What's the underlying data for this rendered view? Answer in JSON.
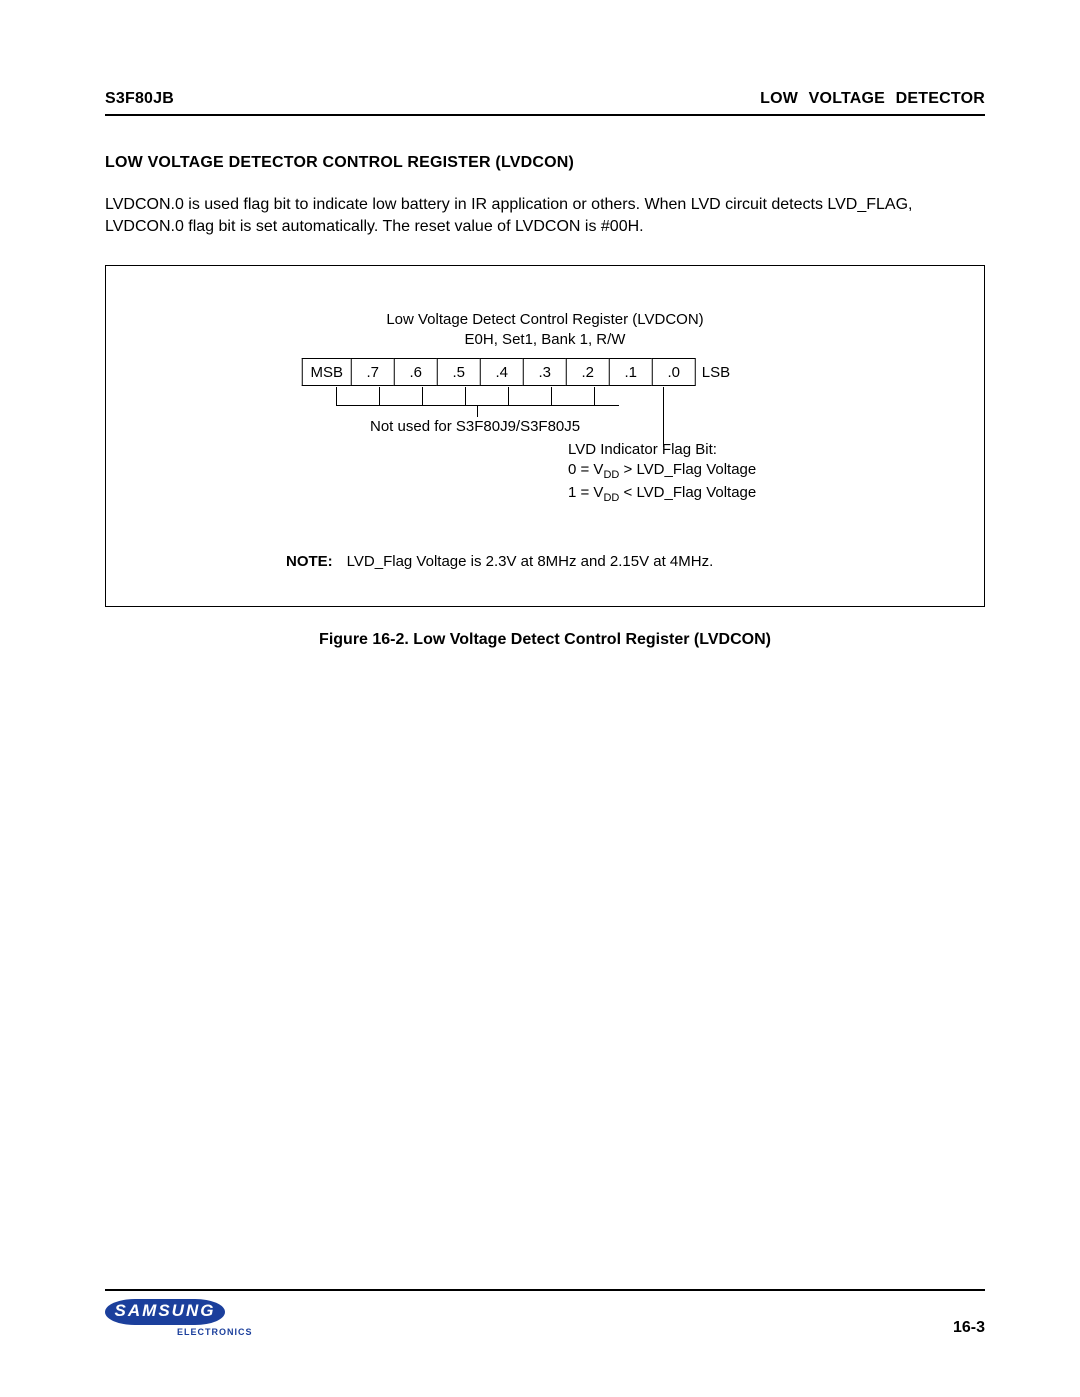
{
  "header": {
    "left": "S3F80JB",
    "right": "LOW   VOLTAGE DETECTOR"
  },
  "section_title": "LOW VOLTAGE DETECTOR CONTROL REGISTER (LVDCON)",
  "body_text": "LVDCON.0 is used flag bit to indicate low battery in IR application or others. When LVD circuit detects LVD_FLAG, LVDCON.0 flag bit is set automatically. The reset value of LVDCON is #00H.",
  "figure": {
    "title_line1": "Low Voltage Detect Control Register (LVDCON)",
    "title_line2": "E0H, Set1, Bank 1, R/W",
    "msb": "MSB",
    "lsb": "LSB",
    "bits": [
      ".7",
      ".6",
      ".5",
      ".4",
      ".3",
      ".2",
      ".1",
      ".0"
    ],
    "not_used": "Not used for S3F80J9/S3F80J5",
    "flag_title": "LVD Indicator Flag Bit:",
    "flag_0_prefix": "0 = V",
    "flag_0_sub": "DD",
    "flag_0_suffix": "  > LVD_Flag Voltage",
    "flag_1_prefix": "1 = V",
    "flag_1_sub": "DD",
    "flag_1_suffix": "  < LVD_Flag Voltage",
    "note_label": "NOTE:",
    "note_text": "LVD_Flag Voltage is 2.3V at 8MHz and 2.15V at 4MHz.",
    "caption": "Figure 16-2. Low Voltage Detect Control Register (LVDCON)"
  },
  "footer": {
    "logo_text": "SAMSUNG",
    "logo_sub": "ELECTRONICS",
    "page": "16-3"
  }
}
